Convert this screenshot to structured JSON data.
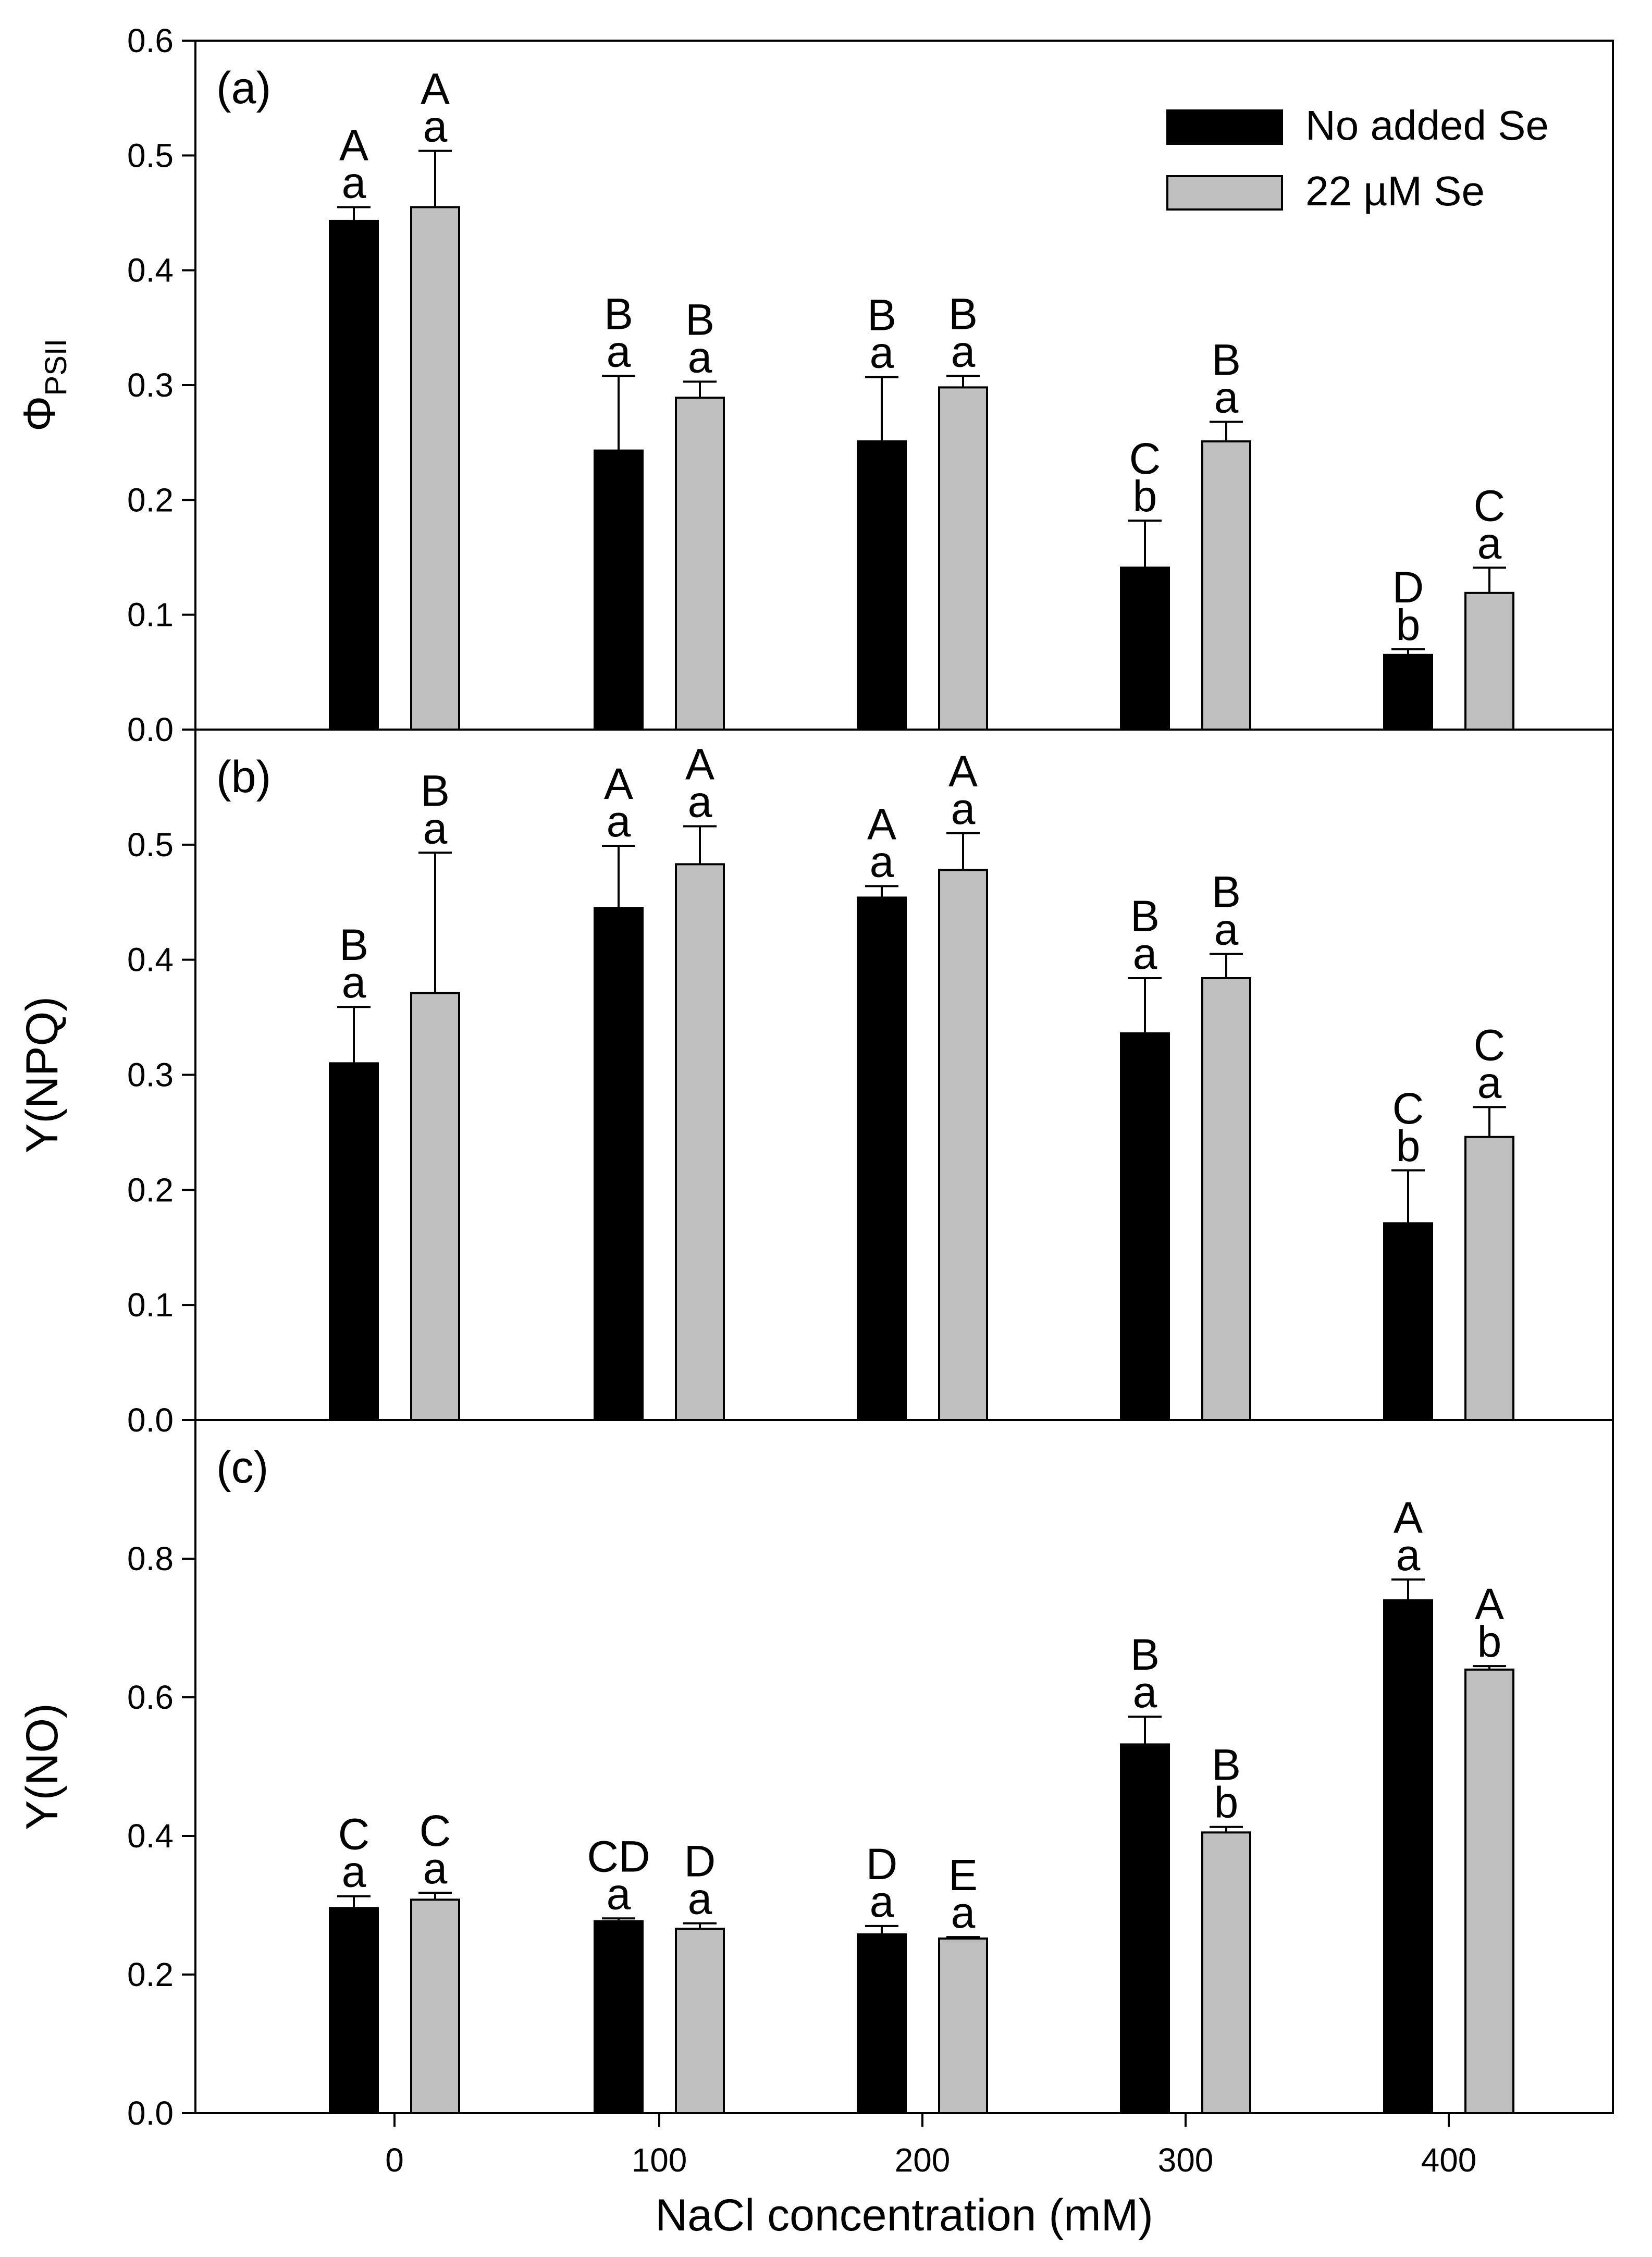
{
  "chart_data": {
    "type": "bar",
    "x_axis": {
      "label": "NaCl concentration (mM)",
      "categories": [
        "0",
        "100",
        "200",
        "300",
        "400"
      ]
    },
    "legend": {
      "location": "top-right of panel (a)",
      "entries": [
        {
          "name": "No added Se",
          "color": "#000000"
        },
        {
          "name": "22 µM Se",
          "color": "#c0c0c0"
        }
      ]
    },
    "panels": [
      {
        "panel_label": "(a)",
        "ylabel_main": "Φ",
        "ylabel_sub": "PSII",
        "ylim": [
          0,
          0.6
        ],
        "yticks": [
          "0.0",
          "0.1",
          "0.2",
          "0.3",
          "0.4",
          "0.5",
          "0.6"
        ],
        "series": [
          {
            "name": "No added Se",
            "values": [
              0.443,
              0.243,
              0.251,
              0.141,
              0.065
            ],
            "errors": [
              0.012,
              0.065,
              0.056,
              0.041,
              0.005
            ],
            "upper_letters": [
              "A",
              "B",
              "B",
              "C",
              "D"
            ],
            "lower_letters": [
              "a",
              "a",
              "a",
              "b",
              "b"
            ]
          },
          {
            "name": "22 µM Se",
            "values": [
              0.455,
              0.289,
              0.298,
              0.251,
              0.119
            ],
            "errors": [
              0.049,
              0.014,
              0.01,
              0.017,
              0.022
            ],
            "upper_letters": [
              "A",
              "B",
              "B",
              "B",
              "C"
            ],
            "lower_letters": [
              "a",
              "a",
              "a",
              "a",
              "a"
            ]
          }
        ]
      },
      {
        "panel_label": "(b)",
        "ylabel_main": "Y(NPQ)",
        "ylim": [
          0,
          0.6
        ],
        "yticks": [
          "0.0",
          "0.1",
          "0.2",
          "0.3",
          "0.4",
          "0.5"
        ],
        "series": [
          {
            "name": "No added Se",
            "values": [
              0.31,
              0.445,
              0.454,
              0.336,
              0.171
            ],
            "errors": [
              0.049,
              0.054,
              0.01,
              0.048,
              0.046
            ],
            "upper_letters": [
              "B",
              "A",
              "A",
              "B",
              "C"
            ],
            "lower_letters": [
              "a",
              "a",
              "a",
              "a",
              "b"
            ]
          },
          {
            "name": "22 µM Se",
            "values": [
              0.371,
              0.483,
              0.478,
              0.384,
              0.246
            ],
            "errors": [
              0.122,
              0.033,
              0.032,
              0.021,
              0.026
            ],
            "upper_letters": [
              "B",
              "A",
              "A",
              "B",
              "C"
            ],
            "lower_letters": [
              "a",
              "a",
              "a",
              "a",
              "a"
            ]
          }
        ]
      },
      {
        "panel_label": "(c)",
        "ylabel_main": "Y(NO)",
        "ylim": [
          0,
          1.0
        ],
        "yticks": [
          "0.0",
          "0.2",
          "0.4",
          "0.6",
          "0.8"
        ],
        "series": [
          {
            "name": "No added Se",
            "values": [
              0.296,
              0.277,
              0.258,
              0.532,
              0.74
            ],
            "errors": [
              0.017,
              0.004,
              0.012,
              0.04,
              0.03
            ],
            "upper_letters": [
              "C",
              "CD",
              "D",
              "B",
              "A"
            ],
            "lower_letters": [
              "a",
              "a",
              "a",
              "a",
              "a"
            ]
          },
          {
            "name": "22 µM Se",
            "values": [
              0.308,
              0.266,
              0.252,
              0.405,
              0.64
            ],
            "errors": [
              0.01,
              0.008,
              0.002,
              0.008,
              0.005
            ],
            "upper_letters": [
              "C",
              "D",
              "E",
              "B",
              "A"
            ],
            "lower_letters": [
              "a",
              "a",
              "a",
              "b",
              "b"
            ]
          }
        ]
      }
    ]
  }
}
